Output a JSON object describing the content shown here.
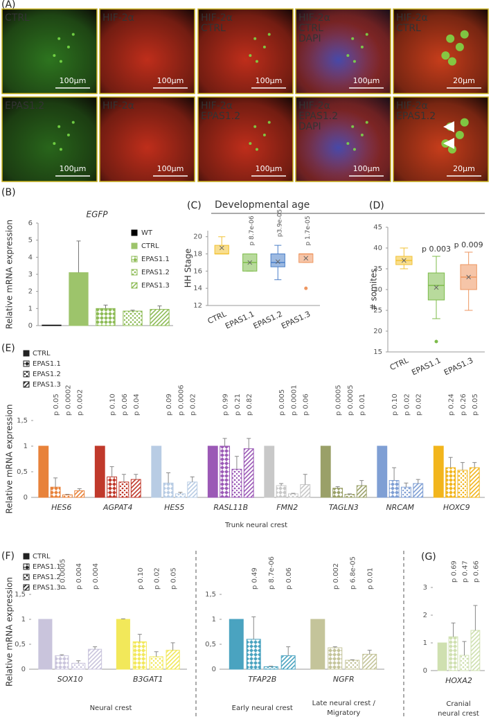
{
  "panel_a": {
    "label": "(A)",
    "images": [
      {
        "labels": [
          "CTRL"
        ],
        "label_colors": [
          "#7de04a"
        ],
        "tints": [
          "#2f7a20"
        ],
        "scale_bar": "100μm"
      },
      {
        "labels": [
          "HIF-2α"
        ],
        "label_colors": [
          "#e8312a"
        ],
        "tints": [
          "#c8301c"
        ],
        "scale_bar": "100μm"
      },
      {
        "labels": [
          "HIF-2α",
          "CTRL"
        ],
        "label_colors": [
          "#e8312a",
          "#7de04a"
        ],
        "tints": [
          "#c8301c"
        ],
        "scale_bar": "100μm"
      },
      {
        "labels": [
          "HIF-2α",
          "CTRL",
          "DAPI"
        ],
        "label_colors": [
          "#e8312a",
          "#7de04a",
          "#6a9af0"
        ],
        "tints": [
          "#c8301c",
          "#3a4cb8"
        ],
        "scale_bar": "100μm"
      },
      {
        "labels": [
          "HIF-2α",
          "CTRL"
        ],
        "label_colors": [
          "#e8312a",
          "#7de04a"
        ],
        "tints": [
          "#d0401c"
        ],
        "scale_bar": "20μm"
      },
      {
        "labels": [
          "EPAS1.2"
        ],
        "label_colors": [
          "#7de04a"
        ],
        "tints": [
          "#2a6a1c"
        ],
        "scale_bar": "100μm"
      },
      {
        "labels": [
          "HIF-2α"
        ],
        "label_colors": [
          "#e8312a"
        ],
        "tints": [
          "#c8301c"
        ],
        "scale_bar": "100μm"
      },
      {
        "labels": [
          "HIF-2α",
          "EPAS1.2"
        ],
        "label_colors": [
          "#e8312a",
          "#7de04a"
        ],
        "tints": [
          "#c8301c"
        ],
        "scale_bar": "100μm"
      },
      {
        "labels": [
          "HIF-2α",
          "EPAS1.2",
          "DAPI"
        ],
        "label_colors": [
          "#e8312a",
          "#7de04a",
          "#6a9af0"
        ],
        "tints": [
          "#c8301c",
          "#3a4cb8"
        ],
        "scale_bar": "100μm"
      },
      {
        "labels": [
          "HIF-2α",
          "EPAS1.2"
        ],
        "label_colors": [
          "#e8312a",
          "#7de04a"
        ],
        "tints": [
          "#d0401c"
        ],
        "scale_bar": "20μm"
      }
    ]
  },
  "chart_data": [
    {
      "panel": "(B)",
      "type": "bar",
      "title": "EGFP",
      "y_label": "Relative mRNA expression",
      "categories": [
        "WT",
        "CTRL",
        "EPAS1.1",
        "EPAS1.2",
        "EPAS1.3"
      ],
      "values": [
        0.03,
        3.1,
        1.0,
        0.85,
        0.95
      ],
      "errors": [
        null,
        1.85,
        0.2,
        0.05,
        0.2
      ],
      "colors": [
        "#000000",
        "#9dc46b",
        "#8dbb55",
        "#8dbb55",
        "#8dbb55"
      ],
      "ylim": [
        0,
        6
      ],
      "yticks": [
        0,
        1,
        2,
        3,
        4,
        5,
        6
      ]
    },
    {
      "panel": "(C)",
      "type": "box",
      "super_title": "Developmental age",
      "y_label": "HH Stage",
      "categories": [
        "CTRL",
        "EPAS1.1",
        "EPAS1.2",
        "EPAS1.3"
      ],
      "p_labels": [
        null,
        "p 8.7e-06",
        "p3.9e-05",
        "p 1.7e-05"
      ],
      "colors": [
        "#f2c233",
        "#7dbb4a",
        "#4a7fc8",
        "#ee9660"
      ],
      "boxes": [
        {
          "min": 18,
          "q1": 18,
          "median": 18,
          "q3": 19,
          "max": 20,
          "mean": 18.7,
          "outliers": []
        },
        {
          "min": 16,
          "q1": 16,
          "median": 17,
          "q3": 18,
          "max": 18,
          "mean": 17,
          "outliers": []
        },
        {
          "min": 15,
          "q1": 16.5,
          "median": 17,
          "q3": 18,
          "max": 19,
          "mean": 17.1,
          "outliers": []
        },
        {
          "min": 17,
          "q1": 17,
          "median": 18,
          "q3": 18,
          "max": 18,
          "mean": 17.5,
          "outliers": [
            14
          ]
        }
      ],
      "ylim": [
        12,
        20.7
      ],
      "yticks": [
        12,
        14,
        16,
        18,
        20
      ]
    },
    {
      "panel": "(D)",
      "type": "box",
      "y_label": "# somites",
      "categories": [
        "CTRL",
        "EPAS1.1",
        "EPAS1.3"
      ],
      "p_labels": [
        null,
        "p 0.003",
        "p 0.009"
      ],
      "colors": [
        "#f2c233",
        "#7dbb4a",
        "#ee9660"
      ],
      "boxes": [
        {
          "min": 35,
          "q1": 36,
          "median": 37,
          "q3": 38,
          "max": 40,
          "mean": 37,
          "outliers": []
        },
        {
          "min": 23,
          "q1": 27.5,
          "median": 31,
          "q3": 34,
          "max": 38,
          "mean": 30.5,
          "outliers": [
            17.5
          ]
        },
        {
          "min": 25,
          "q1": 30,
          "median": 33,
          "q3": 36,
          "max": 39,
          "mean": 33,
          "outliers": []
        }
      ],
      "ylim": [
        15,
        45
      ],
      "yticks": [
        15,
        20,
        25,
        30,
        35,
        40,
        45
      ]
    },
    {
      "panel": "(E)",
      "type": "grouped_bar",
      "y_label": "Relative mRNA expression",
      "x_label": "Trunk neural crest",
      "categories": [
        "HES6",
        "AGPAT4",
        "HES5",
        "RASL11B",
        "FMN2",
        "TAGLN3",
        "NRCAM",
        "HOXC9"
      ],
      "category_colors": [
        "#e8823a",
        "#c0392b",
        "#b8cce4",
        "#9b59b6",
        "#c8c8c8",
        "#9aa068",
        "#7f9fd4",
        "#f2b51c"
      ],
      "series": [
        {
          "name": "CTRL",
          "values": [
            1,
            1,
            1,
            1,
            1,
            1,
            1,
            1
          ],
          "errors": [
            null,
            null,
            null,
            null,
            null,
            null,
            null,
            null
          ]
        },
        {
          "name": "EPAS1.1",
          "values": [
            0.2,
            0.4,
            0.28,
            1.0,
            0.23,
            0.18,
            0.33,
            0.58
          ],
          "errors": [
            0.18,
            0.2,
            0.2,
            0.15,
            0.04,
            0.03,
            0.25,
            0.2
          ]
        },
        {
          "name": "EPAS1.2",
          "values": [
            0.05,
            0.3,
            0.07,
            0.55,
            0.07,
            0.06,
            0.2,
            0.53
          ],
          "errors": [
            0.01,
            0.15,
            0.03,
            0.25,
            0.01,
            0.01,
            0.08,
            0.15
          ]
        },
        {
          "name": "EPAS1.3",
          "values": [
            0.13,
            0.35,
            0.3,
            0.95,
            0.25,
            0.23,
            0.27,
            0.58
          ],
          "errors": [
            0.04,
            0.1,
            0.1,
            0.2,
            0.2,
            0.1,
            0.08,
            0.1
          ]
        }
      ],
      "p_labels": [
        [
          "p 0.05",
          "p 0.0002",
          "p 0.002"
        ],
        [
          "p 0.10",
          "p 0.06",
          "p 0.04"
        ],
        [
          "p 0.09",
          "p 0.0006",
          "p 0.02"
        ],
        [
          "p 0.99",
          "p 0.21",
          "p 0.82"
        ],
        [
          "p 0.005",
          "p 0.0001",
          "p 0.06"
        ],
        [
          "p 0.0005",
          "p 0.0005",
          "p 0.01"
        ],
        [
          "p 0.10",
          "p 0.02",
          "p 0.02"
        ],
        [
          "p 0.24",
          "p 0.26",
          "p 0.05"
        ]
      ],
      "ylim": [
        0,
        1.5
      ],
      "yticks": [
        0,
        {
          "value": 0.5,
          "label": "0,5"
        },
        1,
        {
          "value": 1.5,
          "label": "1,5"
        }
      ]
    },
    {
      "panel": "(F)",
      "type": "grouped_bar",
      "y_label": "Relative mRNA expression",
      "x_label": "Neural crest",
      "categories": [
        "SOX10",
        "B3GAT1"
      ],
      "category_colors": [
        "#c9c4dc",
        "#f2e85a"
      ],
      "series": [
        {
          "name": "CTRL",
          "values": [
            1,
            1
          ],
          "errors": [
            null,
            0.01
          ]
        },
        {
          "name": "EPAS1.1",
          "values": [
            0.27,
            0.55
          ],
          "errors": [
            0.02,
            0.15
          ]
        },
        {
          "name": "EPAS1.2",
          "values": [
            0.12,
            0.25
          ],
          "errors": [
            0.05,
            0.1
          ]
        },
        {
          "name": "EPAS1.3",
          "values": [
            0.4,
            0.38
          ],
          "errors": [
            0.05,
            0.15
          ]
        }
      ],
      "p_labels": [
        [
          "p 0.0005",
          "p 0.004",
          "p 0.004"
        ],
        [
          "p 0.10",
          "p 0.02",
          "p 0.05"
        ]
      ],
      "ylim": [
        0,
        1.5
      ],
      "yticks": [
        0,
        {
          "value": 0.5,
          "label": "0,5"
        },
        1,
        {
          "value": 1.5,
          "label": "1,5"
        }
      ]
    },
    {
      "type": "grouped_bar",
      "categories": [
        "TFAP2B",
        "NGFR"
      ],
      "category_colors": [
        "#4aa3c0",
        "#c4c49a"
      ],
      "category_labels": [
        [
          "Early neural crest"
        ],
        [
          "Late neural crest /",
          "Migratory"
        ]
      ],
      "series": [
        {
          "values": [
            1,
            1
          ],
          "errors": [
            null,
            null
          ]
        },
        {
          "values": [
            0.6,
            0.43
          ],
          "errors": [
            0.45,
            0.02
          ]
        },
        {
          "values": [
            0.05,
            0.18
          ],
          "errors": [
            0.01,
            0.01
          ]
        },
        {
          "values": [
            0.27,
            0.3
          ],
          "errors": [
            0.18,
            0.08
          ]
        }
      ],
      "p_labels": [
        [
          "p 0.49",
          "p 8.7e-06",
          "p 0.06"
        ],
        [
          "p 0.002",
          "p 6.8e-05",
          "p 0.01"
        ]
      ],
      "ylim": [
        0,
        1.5
      ],
      "yticks": [
        0,
        {
          "value": 0.5,
          "label": "0,5"
        },
        1,
        {
          "value": 1.5,
          "label": "1,5"
        }
      ]
    },
    {
      "panel": "(G)",
      "type": "grouped_bar",
      "x_label": [
        "Cranial",
        "neural crest"
      ],
      "categories": [
        "HOXA2"
      ],
      "category_colors": [
        "#cfe0b0"
      ],
      "series": [
        {
          "values": [
            1
          ],
          "errors": [
            null
          ]
        },
        {
          "values": [
            1.22
          ],
          "errors": [
            0.5
          ]
        },
        {
          "values": [
            0.55
          ],
          "errors": [
            0.5
          ]
        },
        {
          "values": [
            1.45
          ],
          "errors": [
            0.9
          ]
        }
      ],
      "p_labels": [
        [
          "p 0.69",
          "p 0.47",
          "p 0.66"
        ]
      ],
      "ylim": [
        0,
        3
      ],
      "yticks": [
        0,
        1,
        2,
        3
      ]
    }
  ]
}
